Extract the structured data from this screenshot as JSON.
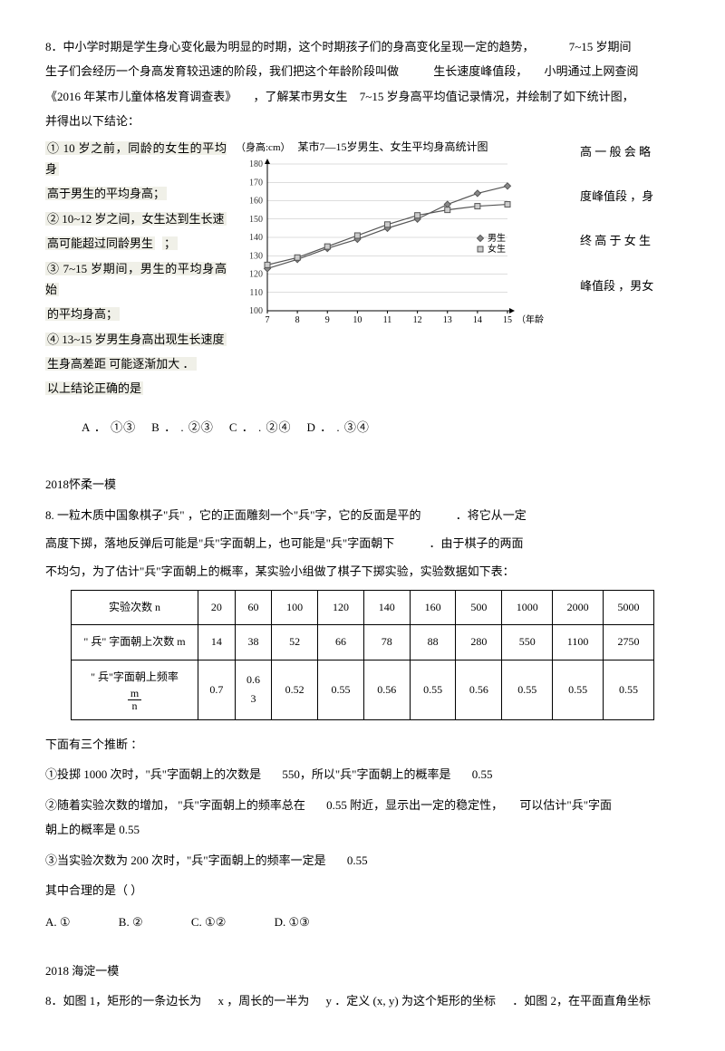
{
  "q1": {
    "intro1": "8．中小学时期是学生身心变化最为明显的时期，这个时期孩子们的身高变化呈现一定的趋势，",
    "intro1_tail": "7~15 岁期间",
    "intro2": "生子们会经历一个身高发育较迅速的阶段，我们把这个年龄阶段叫做",
    "intro2_tail": "生长速度峰值段，",
    "intro2_tail2": "小明通过上网查阅",
    "intro3": "《2016 年某市儿童体格发育调查表》",
    "intro3_mid": "，了解某市男女生",
    "intro3_tail": "7~15 岁身高平均值记录情况，并绘制了如下统计图，",
    "intro4": "并得出以下结论：",
    "s1a": "① 10 岁之前，同龄的女生的平均身",
    "s1b": "高 一 般 会 略",
    "s1c": "高于男生的平均身高；",
    "s2a": "② 10~12 岁之间，女生达到生长速",
    "s2b": "度峰值段 ，身",
    "s2c": "高可能超过同龄男生",
    "s2d": "；",
    "s3a": "③ 7~15 岁期间，男生的平均身高始",
    "s3b": "终 高 于 女 生",
    "s3c": "的平均身高；",
    "s4a": "④ 13~15 岁男生身高出现生长速度",
    "s4b": "峰值段 ，男女",
    "s4c": "生身高差距  可能逐渐加大 ．",
    "s5": "以上结论正确的是",
    "choiceA": "A ．  ①③",
    "choiceB": "B ．  . ②③",
    "choiceC": "C ．  . ②④",
    "choiceD": "D ．  . ③④"
  },
  "chart": {
    "title": "某市7—15岁男生、女生平均身高统计图",
    "yLabel": "（身高:cm）",
    "xLabel": "（年龄:岁）",
    "yTicks": [
      180,
      170,
      160,
      150,
      140,
      130,
      120,
      110,
      100
    ],
    "xTicks": [
      7,
      8,
      9,
      10,
      11,
      12,
      13,
      14,
      15
    ],
    "male": [
      123,
      128,
      134,
      139,
      145,
      150,
      158,
      164,
      168
    ],
    "female": [
      125,
      129,
      135,
      141,
      147,
      152,
      155,
      157,
      158
    ],
    "legendMale": "男生",
    "legendFemale": "女生",
    "colors": {
      "line": "#555555",
      "grid": "#999999",
      "bg": "#ffffff"
    }
  },
  "q2": {
    "header": "2018怀柔一模",
    "p1a": "8.  一粒木质中国象棋子\"兵\" ，它的正面雕刻一个\"兵\"字，它的反面是平的",
    "p1b": "．将它从一定",
    "p2a": "高度下掷，落地反弹后可能是\"兵\"字面朝上，也可能是\"兵\"字面朝下",
    "p2b": "．由于棋子的两面",
    "p3": "不均匀，为了估计\"兵\"字面朝上的概率，某实验小组做了棋子下掷实验，实验数据如下表：",
    "table": {
      "h1": "实验次数  n",
      "h2": "\" 兵\" 字面朝上次数     m",
      "h3a": "\" 兵\"字面朝上频率",
      "n": [
        "20",
        "60",
        "100",
        "120",
        "140",
        "160",
        "500",
        "1000",
        "2000",
        "5000"
      ],
      "m": [
        "14",
        "38",
        "52",
        "66",
        "78",
        "88",
        "280",
        "550",
        "1100",
        "2750"
      ],
      "f": [
        "0.7",
        "0.63",
        "0.52",
        "0.55",
        "0.56",
        "0.55",
        "0.56",
        "0.55",
        "0.55",
        "0.55"
      ]
    },
    "p4": "下面有三个推断 ：",
    "p5a": "①投掷  1000 次时，\"兵\"字面朝上的次数是",
    "p5b": "550，所以\"兵\"字面朝上的概率是",
    "p5c": "0.55",
    "p6a": "②随着实验次数的增加，  \"兵\"字面朝上的频率总在",
    "p6b": "0.55 附近，显示出一定的稳定性，",
    "p6c": "可以估计\"兵\"字面",
    "p7": "朝上的概率是   0.55",
    "p8a": "③当实验次数为   200 次时，\"兵\"字面朝上的频率一定是",
    "p8b": "0.55",
    "p9": "其中合理的是（         ）",
    "oA": "A. ①",
    "oB": "B.             ②",
    "oC": "C.             ①②",
    "oD": "D.             ①③"
  },
  "q3": {
    "header": "2018 海淀一模",
    "p1": "8．如图  1，矩形的一条边长为",
    "p2": "x ，周长的一半为",
    "p3": "y ．定义 (x, y) 为这个矩形的坐标",
    "p4": "．如图  2，在平面直角坐标"
  }
}
